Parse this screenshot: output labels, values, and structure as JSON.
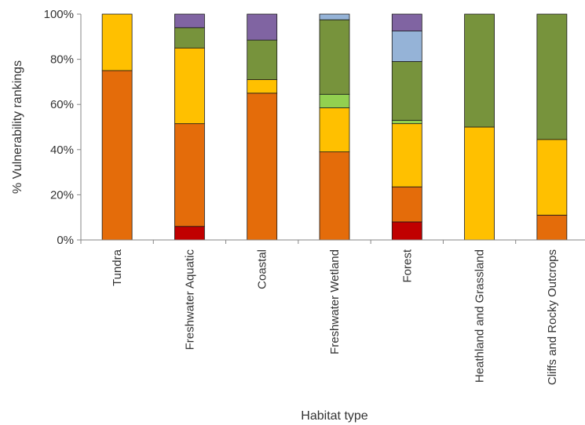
{
  "chart_data": {
    "type": "bar",
    "stacked": true,
    "title": "",
    "xlabel": "Habitat type",
    "ylabel": "% Vulnerability rankings",
    "ylim": [
      0,
      100
    ],
    "yticks": [
      "0%",
      "20%",
      "40%",
      "60%",
      "80%",
      "100%"
    ],
    "grid": false,
    "legend": "none",
    "categories": [
      "Tundra",
      "Freshwater Aquatic",
      "Coastal",
      "Freshwater Wetland",
      "Forest",
      "Heathland and Grassland",
      "Cliffs and Rocky Outcrops"
    ],
    "series": [
      {
        "color": "#c00000",
        "values": [
          0,
          6,
          0,
          0,
          8,
          0,
          0
        ]
      },
      {
        "color": "#e46c0a",
        "values": [
          75,
          45.5,
          65,
          39,
          15.5,
          0,
          11
        ]
      },
      {
        "color": "#ffc000",
        "values": [
          25,
          33.5,
          6,
          19.5,
          28,
          50,
          33.5
        ]
      },
      {
        "color": "#92d050",
        "values": [
          0,
          0,
          0,
          6,
          1.5,
          0,
          0
        ]
      },
      {
        "color": "#77933c",
        "values": [
          0,
          9,
          17.5,
          33,
          26,
          50,
          55.5
        ]
      },
      {
        "color": "#95b3d7",
        "values": [
          0,
          0,
          0,
          2.5,
          13.5,
          0,
          0
        ]
      },
      {
        "color": "#8064a2",
        "values": [
          0,
          6,
          11.5,
          0,
          7.5,
          0,
          0
        ]
      }
    ]
  }
}
